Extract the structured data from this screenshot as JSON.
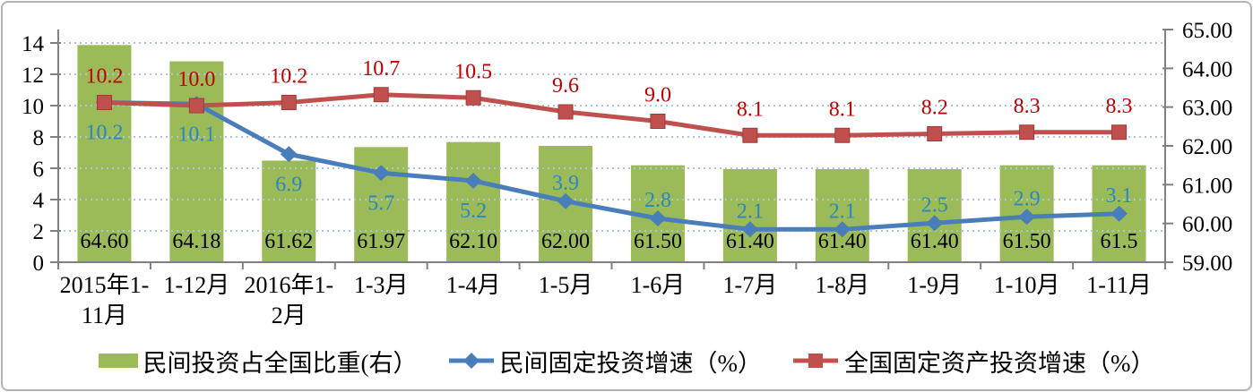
{
  "chart_data": {
    "type": "combo-bar-line",
    "categories": [
      "2015年1-\n11月",
      "1-12月",
      "2016年1-\n2月",
      "1-3月",
      "1-4月",
      "1-5月",
      "1-6月",
      "1-7月",
      "1-8月",
      "1-9月",
      "1-10月",
      "1-11月"
    ],
    "series": [
      {
        "name": "民间投资占全国比重(右）",
        "type": "bar",
        "axis": "right",
        "color": "#9BBB59",
        "label_color": "#000000",
        "values": [
          64.6,
          64.18,
          61.62,
          61.97,
          62.1,
          62.0,
          61.5,
          61.4,
          61.4,
          61.4,
          61.5,
          61.5
        ],
        "labels": [
          "64.60",
          "64.18",
          "61.62",
          "61.97",
          "62.10",
          "62.00",
          "61.50",
          "61.40",
          "61.40",
          "61.40",
          "61.50",
          "61.5"
        ]
      },
      {
        "name": "民间固定投资增速（%）",
        "type": "line",
        "marker": "diamond",
        "axis": "left",
        "color": "#4A7EBB",
        "label_color": "#2E86C0",
        "values": [
          10.2,
          10.1,
          6.9,
          5.7,
          5.2,
          3.9,
          2.8,
          2.1,
          2.1,
          2.5,
          2.9,
          3.1
        ],
        "labels": [
          "10.2",
          "10.1",
          "6.9",
          "5.7",
          "5.2",
          "3.9",
          "2.8",
          "2.1",
          "2.1",
          "2.5",
          "2.9",
          "3.1"
        ],
        "labels_below_first_n": 5
      },
      {
        "name": "全国固定资产投资增速（%）",
        "type": "line",
        "marker": "square",
        "axis": "left",
        "color": "#C0504D",
        "marker_stroke": "#9E3B38",
        "label_color": "#C00000",
        "values": [
          10.2,
          10.0,
          10.2,
          10.7,
          10.5,
          9.6,
          9.0,
          8.1,
          8.1,
          8.2,
          8.3,
          8.3
        ],
        "labels": [
          "10.2",
          "10.0",
          "10.2",
          "10.7",
          "10.5",
          "9.6",
          "9.0",
          "8.1",
          "8.1",
          "8.2",
          "8.3",
          "8.3"
        ]
      }
    ],
    "left_axis": {
      "min": 0,
      "max": 14,
      "tick_step": 2,
      "tick_labels": [
        "0",
        "2",
        "4",
        "6",
        "8",
        "10",
        "12",
        "14"
      ]
    },
    "right_axis": {
      "min": 59,
      "max": 65,
      "tick_step": 1,
      "tick_labels": [
        "59.00",
        "60.00",
        "61.00",
        "62.00",
        "63.00",
        "64.00",
        "65.00"
      ]
    },
    "grid": {
      "style": "dotted",
      "color": "#AFC3DC"
    },
    "axis_color": "#808080",
    "tick_label_color": "#000000",
    "legend_position": "bottom"
  }
}
